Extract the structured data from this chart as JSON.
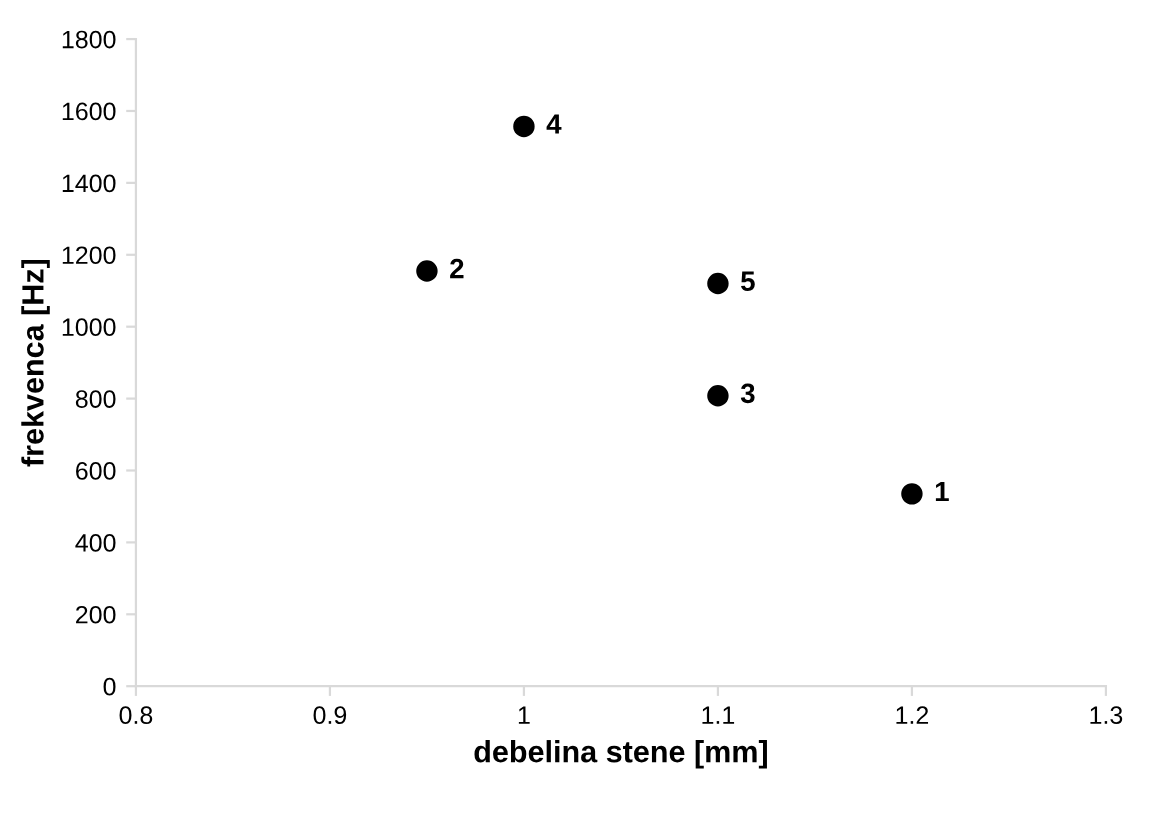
{
  "chart_data": {
    "type": "scatter",
    "xlabel": "debelina stene [mm]",
    "ylabel": "frekvenca [Hz]",
    "x": [
      1.2,
      0.95,
      1.1,
      1.0,
      1.1
    ],
    "series": [
      {
        "color": "#000000",
        "values": [
          535,
          1155,
          808,
          1557,
          1120
        ]
      }
    ],
    "annotations": [
      {
        "text": "1",
        "x": 1.2,
        "y": 535
      },
      {
        "text": "2",
        "x": 0.95,
        "y": 1155
      },
      {
        "text": "3",
        "x": 1.1,
        "y": 808
      },
      {
        "text": "4",
        "x": 1.0,
        "y": 1557
      },
      {
        "text": "5",
        "x": 1.1,
        "y": 1120
      }
    ],
    "xlim": [
      0.8,
      1.3
    ],
    "xticks": [
      0.8,
      0.9,
      {
        "value": 1.0,
        "label": "1"
      },
      1.1,
      1.2,
      1.3
    ],
    "ylim": [
      0,
      1800
    ],
    "yticks": [
      0,
      200,
      400,
      600,
      800,
      1000,
      1200,
      1400,
      1600,
      1800
    ],
    "marker": "circle",
    "grid": false
  }
}
